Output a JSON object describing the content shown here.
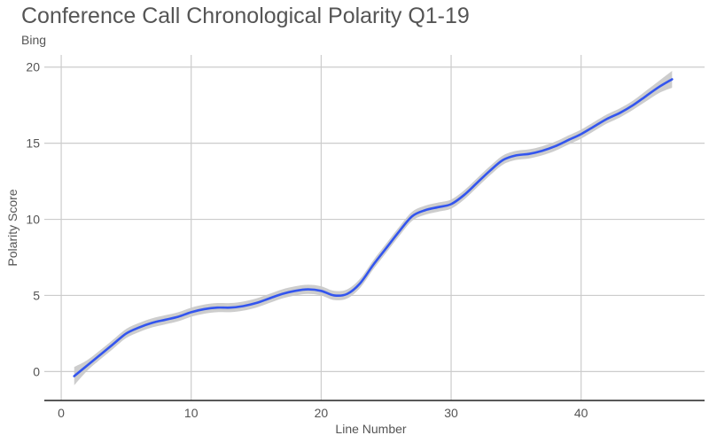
{
  "chart_data": {
    "type": "line",
    "title": "Conference Call Chronological Polarity Q1-19",
    "subtitle": "Bing",
    "xlabel": "Line Number",
    "ylabel": "Polarity Score",
    "xlim": [
      -1.3,
      49.5
    ],
    "ylim": [
      -1.9,
      20.8
    ],
    "xticks": [
      0,
      10,
      20,
      30,
      40
    ],
    "yticks": [
      0,
      5,
      10,
      15,
      20
    ],
    "grid": true,
    "line_color": "#3355ee",
    "band_color": "#c8c8c8",
    "series": [
      {
        "x": [
          1,
          2,
          3,
          4,
          5,
          6,
          7,
          8,
          9,
          10,
          11,
          12,
          13,
          14,
          15,
          16,
          17,
          18,
          19,
          20,
          21,
          22,
          23,
          24,
          25,
          26,
          27,
          28,
          29,
          30,
          31,
          32,
          33,
          34,
          35,
          36,
          37,
          38,
          39,
          40,
          41,
          42,
          43,
          44,
          45,
          46,
          47
        ],
        "values": [
          -0.3,
          0.4,
          1.1,
          1.8,
          2.5,
          2.9,
          3.2,
          3.4,
          3.6,
          3.9,
          4.1,
          4.2,
          4.2,
          4.3,
          4.5,
          4.8,
          5.1,
          5.3,
          5.4,
          5.3,
          5.0,
          5.1,
          5.8,
          7.0,
          8.1,
          9.2,
          10.2,
          10.6,
          10.8,
          11.0,
          11.6,
          12.4,
          13.2,
          13.9,
          14.2,
          14.3,
          14.5,
          14.8,
          15.2,
          15.6,
          16.1,
          16.6,
          17.0,
          17.5,
          18.1,
          18.7,
          19.2
        ],
        "band_halfwidth": [
          0.6,
          0.35,
          0.3,
          0.3,
          0.3,
          0.3,
          0.3,
          0.3,
          0.3,
          0.3,
          0.3,
          0.3,
          0.3,
          0.3,
          0.3,
          0.3,
          0.3,
          0.3,
          0.3,
          0.3,
          0.3,
          0.3,
          0.3,
          0.3,
          0.3,
          0.3,
          0.3,
          0.3,
          0.3,
          0.3,
          0.3,
          0.3,
          0.3,
          0.3,
          0.3,
          0.3,
          0.3,
          0.3,
          0.3,
          0.3,
          0.3,
          0.3,
          0.3,
          0.3,
          0.35,
          0.4,
          0.55
        ]
      }
    ]
  }
}
